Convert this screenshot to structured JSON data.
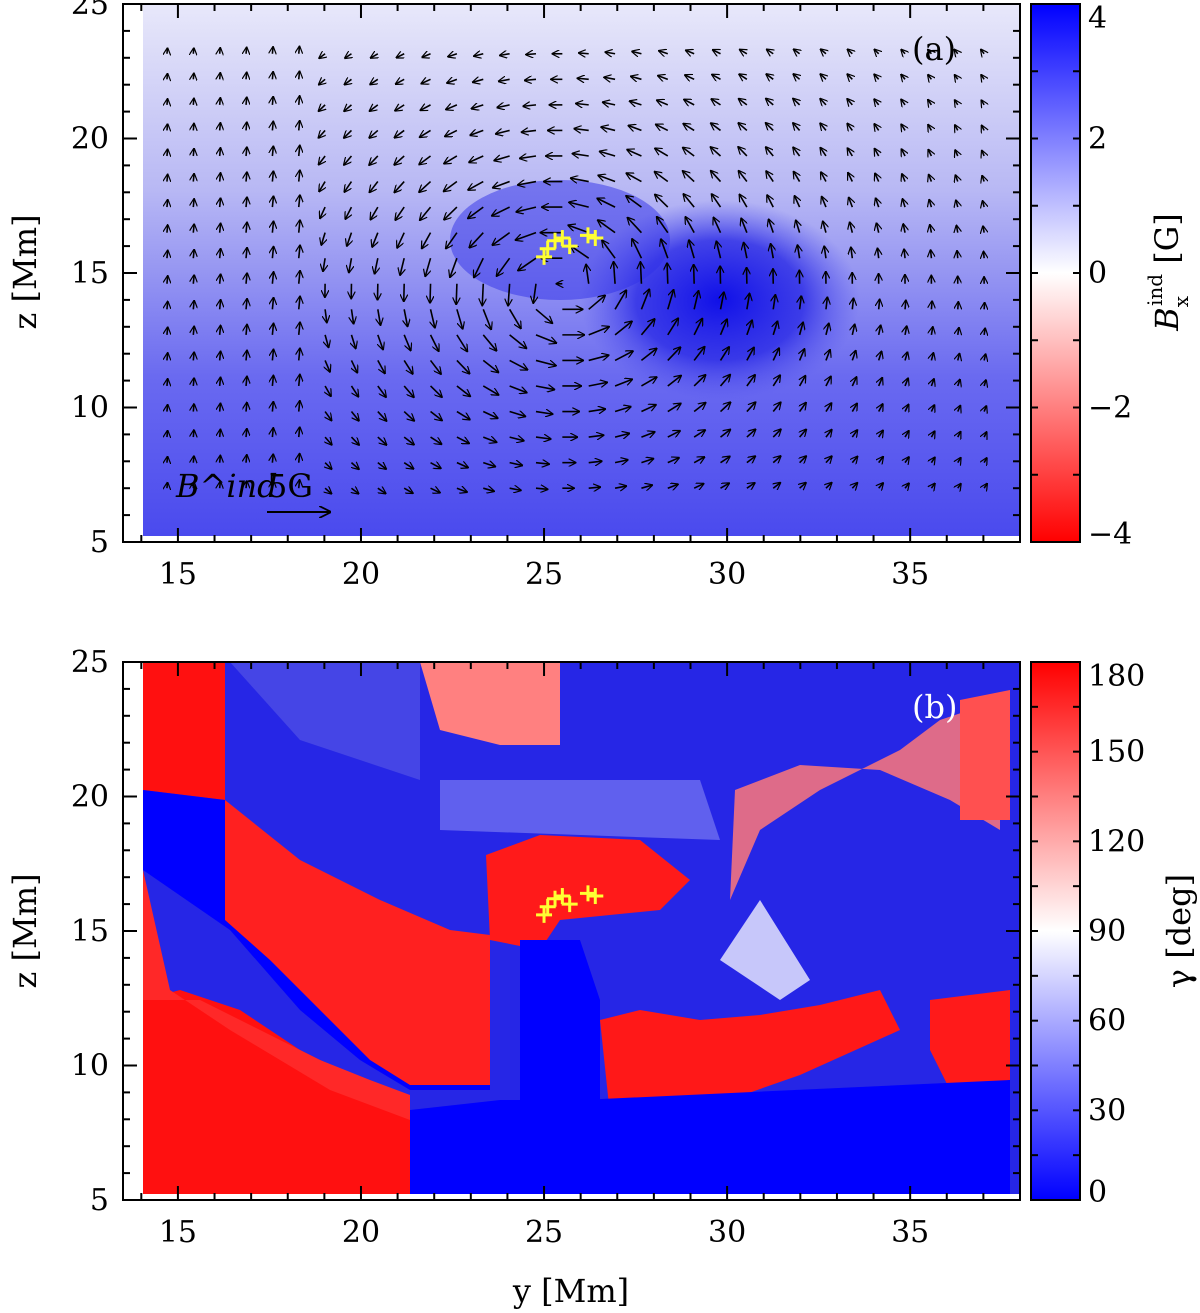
{
  "figure": {
    "panel_a_tag": "(a)",
    "panel_b_tag": "(b)",
    "ylabel": "z [Mm]",
    "xlabel": "y [Mm]",
    "cbar_a_label": "B_x^ind [G]",
    "cbar_b_label": "γ [deg]",
    "arrow_key_label": "B^ind",
    "arrow_key_value": "5G"
  },
  "chart_data": [
    {
      "type": "heatmap",
      "panel": "(a)",
      "quantity": "B_x^ind",
      "unit": "G",
      "xlabel": "y [Mm]",
      "ylabel": "z [Mm]",
      "xlim": [
        13.5,
        38
      ],
      "ylim": [
        5,
        25
      ],
      "xticks": [
        15,
        20,
        25,
        30,
        35
      ],
      "yticks": [
        5,
        10,
        15,
        20,
        25
      ],
      "xtick_labels": [
        "15",
        "20",
        "25",
        "30",
        "35"
      ],
      "ytick_labels": [
        "5",
        "10",
        "15",
        "20",
        "25"
      ],
      "colorbar": {
        "range": [
          -4,
          4
        ],
        "ticks": [
          -4,
          -2,
          0,
          2,
          4
        ],
        "tick_labels": [
          "−4",
          "−2",
          "0",
          "2",
          "4"
        ],
        "colors": {
          "min": "#ff0000",
          "mid": "#ffffff",
          "max": "#0000ff"
        }
      },
      "field_features": [
        {
          "type": "maximum",
          "y": 29.5,
          "z": 14,
          "value": 3.8
        },
        {
          "type": "background",
          "value": 1.5
        }
      ],
      "vector_overlay": {
        "name": "B^ind",
        "reference": {
          "label": "5G",
          "value": 5
        }
      },
      "markers": {
        "symbol": "+",
        "color": "#ffff33",
        "points": [
          [
            25.0,
            15.6
          ],
          [
            25.1,
            15.9
          ],
          [
            25.3,
            16.2
          ],
          [
            25.5,
            16.3
          ],
          [
            25.7,
            16.0
          ],
          [
            26.2,
            16.4
          ],
          [
            26.4,
            16.3
          ]
        ]
      }
    },
    {
      "type": "heatmap",
      "panel": "(b)",
      "quantity": "γ",
      "unit": "deg",
      "xlabel": "y [Mm]",
      "ylabel": "z [Mm]",
      "xlim": [
        13.5,
        38
      ],
      "ylim": [
        5,
        25
      ],
      "xticks": [
        15,
        20,
        25,
        30,
        35
      ],
      "yticks": [
        5,
        10,
        15,
        20,
        25
      ],
      "xtick_labels": [
        "15",
        "20",
        "25",
        "30",
        "35"
      ],
      "ytick_labels": [
        "5",
        "10",
        "15",
        "20",
        "25"
      ],
      "colorbar": {
        "range": [
          0,
          180
        ],
        "ticks": [
          0,
          30,
          60,
          90,
          120,
          150,
          180
        ],
        "tick_labels": [
          "0",
          "30",
          "60",
          "90",
          "120",
          "150",
          "180"
        ],
        "colors": {
          "min": "#0000ff",
          "mid": "#ffffff",
          "max": "#ff0000"
        }
      },
      "markers": {
        "symbol": "+",
        "color": "#ffff33",
        "points": [
          [
            25.0,
            15.6
          ],
          [
            25.1,
            15.9
          ],
          [
            25.3,
            16.2
          ],
          [
            25.5,
            16.3
          ],
          [
            25.7,
            16.0
          ],
          [
            26.2,
            16.4
          ],
          [
            26.4,
            16.3
          ]
        ]
      }
    }
  ]
}
